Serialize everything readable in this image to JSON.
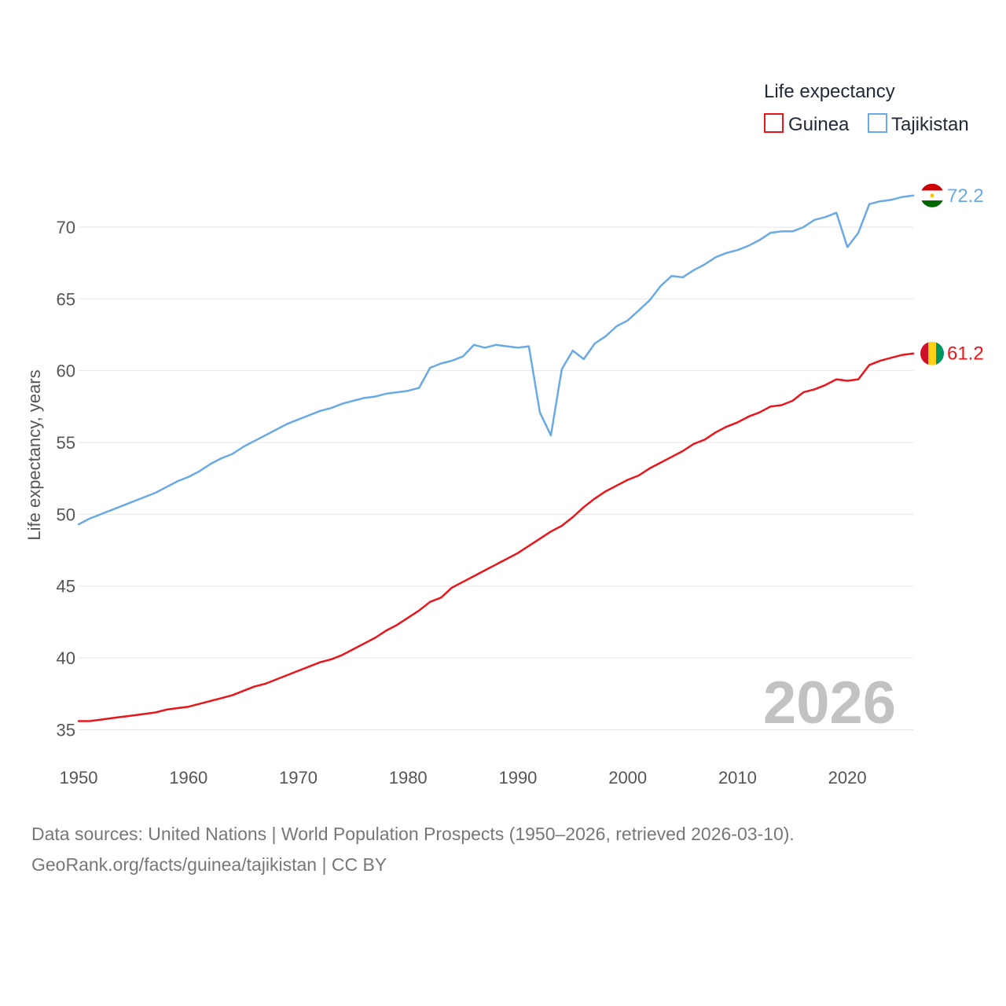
{
  "chart_data": {
    "type": "line",
    "legend_title": "Life expectancy",
    "ylabel": "Life expectancy, years",
    "xlim": [
      1950,
      2026
    ],
    "ylim": [
      33,
      73.5
    ],
    "x_ticks": [
      1950,
      1960,
      1970,
      1980,
      1990,
      2000,
      2010,
      2020
    ],
    "y_ticks": [
      35,
      40,
      45,
      50,
      55,
      60,
      65,
      70
    ],
    "current_year": "2026",
    "x": [
      1950,
      1951,
      1952,
      1953,
      1954,
      1955,
      1956,
      1957,
      1958,
      1959,
      1960,
      1961,
      1962,
      1963,
      1964,
      1965,
      1966,
      1967,
      1968,
      1969,
      1970,
      1971,
      1972,
      1973,
      1974,
      1975,
      1976,
      1977,
      1978,
      1979,
      1980,
      1981,
      1982,
      1983,
      1984,
      1985,
      1986,
      1987,
      1988,
      1989,
      1990,
      1991,
      1992,
      1993,
      1994,
      1995,
      1996,
      1997,
      1998,
      1999,
      2000,
      2001,
      2002,
      2003,
      2004,
      2005,
      2006,
      2007,
      2008,
      2009,
      2010,
      2011,
      2012,
      2013,
      2014,
      2015,
      2016,
      2017,
      2018,
      2019,
      2020,
      2021,
      2022,
      2023,
      2024,
      2025,
      2026
    ],
    "series": [
      {
        "name": "Guinea",
        "color": "#e8151b",
        "end_label": "61.2",
        "values": [
          35.6,
          35.6,
          35.7,
          35.8,
          35.9,
          36.0,
          36.1,
          36.2,
          36.4,
          36.5,
          36.6,
          36.8,
          37.0,
          37.2,
          37.4,
          37.7,
          38.0,
          38.2,
          38.5,
          38.8,
          39.1,
          39.4,
          39.7,
          39.9,
          40.2,
          40.6,
          41.0,
          41.4,
          41.9,
          42.3,
          42.8,
          43.3,
          43.9,
          44.2,
          44.9,
          45.3,
          45.7,
          46.1,
          46.5,
          46.9,
          47.3,
          47.8,
          48.3,
          48.8,
          49.2,
          49.8,
          50.5,
          51.1,
          51.6,
          52.0,
          52.4,
          52.7,
          53.2,
          53.6,
          54.0,
          54.4,
          54.9,
          55.2,
          55.7,
          56.1,
          56.4,
          56.8,
          57.1,
          57.5,
          57.6,
          57.9,
          58.5,
          58.7,
          59.0,
          59.4,
          59.3,
          59.4,
          60.4,
          60.7,
          60.9,
          61.1,
          61.2
        ]
      },
      {
        "name": "Tajikistan",
        "color": "#6aaae4",
        "end_label": "72.2",
        "values": [
          49.3,
          49.7,
          50.0,
          50.3,
          50.6,
          50.9,
          51.2,
          51.5,
          51.9,
          52.3,
          52.6,
          53.0,
          53.5,
          53.9,
          54.2,
          54.7,
          55.1,
          55.5,
          55.9,
          56.3,
          56.6,
          56.9,
          57.2,
          57.4,
          57.7,
          57.9,
          58.1,
          58.2,
          58.4,
          58.5,
          58.6,
          58.8,
          60.2,
          60.5,
          60.7,
          61.0,
          61.8,
          61.6,
          61.8,
          61.7,
          61.6,
          61.7,
          57.1,
          55.5,
          60.1,
          61.4,
          60.8,
          61.9,
          62.4,
          63.1,
          63.5,
          64.2,
          64.9,
          65.9,
          66.6,
          66.5,
          67.0,
          67.4,
          67.9,
          68.2,
          68.4,
          68.7,
          69.1,
          69.6,
          69.7,
          69.7,
          70.0,
          70.5,
          70.7,
          71.0,
          68.6,
          69.6,
          71.6,
          71.8,
          71.9,
          72.1,
          72.2
        ]
      }
    ]
  },
  "footer": {
    "line1": "Data sources: United Nations | World Population Prospects (1950–2026, retrieved 2026-03-10).",
    "line2": "GeoRank.org/facts/guinea/tajikistan | CC BY"
  },
  "flags": {
    "guinea": [
      "#ce1126",
      "#fcd116",
      "#009460"
    ],
    "tajikistan": [
      "#cc0000",
      "#ffffff",
      "#006600"
    ]
  }
}
